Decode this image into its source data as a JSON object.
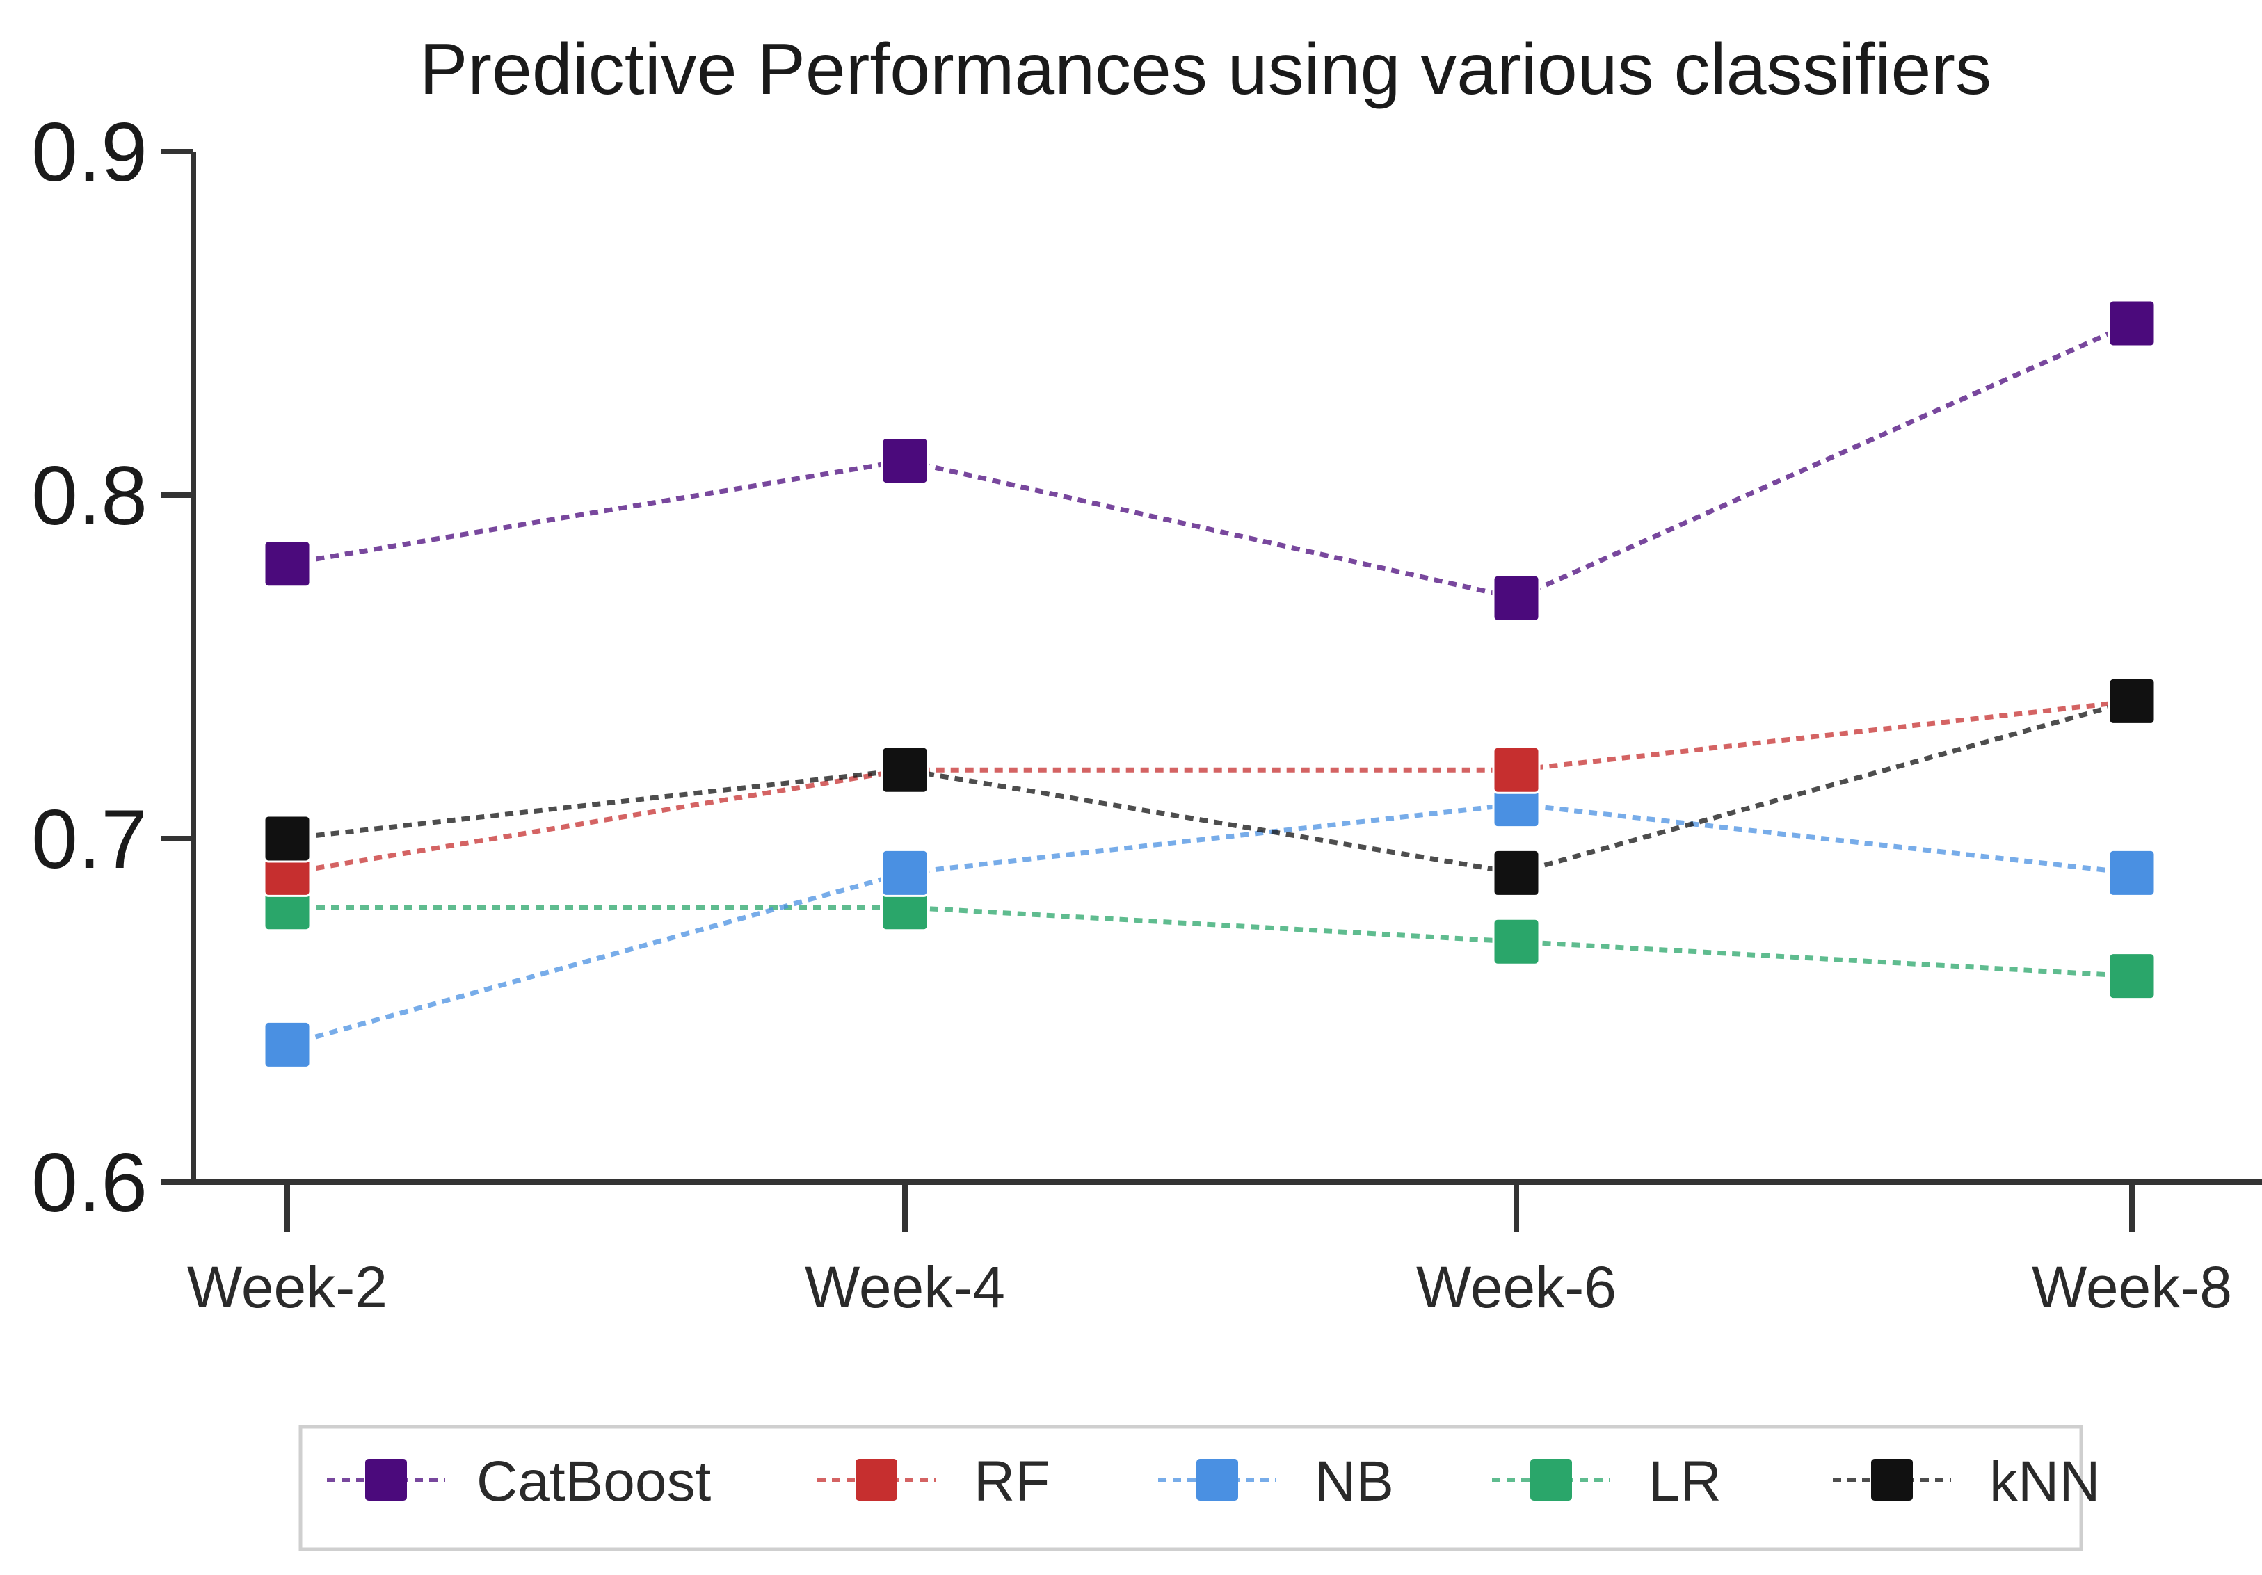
{
  "chart_data": {
    "type": "line",
    "title": "Predictive Performances using various classifiers",
    "xlabel": "",
    "ylabel": "",
    "categories": [
      "Week-2",
      "Week-4",
      "Week-6",
      "Week-8"
    ],
    "ylim": [
      0.6,
      0.9
    ],
    "yticks": [
      0.6,
      0.7,
      0.8,
      0.9
    ],
    "ytick_labels": [
      "0.6",
      "0.7",
      "0.8",
      "0.9"
    ],
    "grid": false,
    "legend_position": "bottom",
    "line_style": "dashed",
    "marker": "square",
    "series": [
      {
        "name": "CatBoost",
        "color": "#4b0a7c",
        "values": [
          0.78,
          0.81,
          0.77,
          0.85
        ]
      },
      {
        "name": "RF",
        "color": "#c62f2f",
        "values": [
          0.69,
          0.72,
          0.72,
          0.74
        ]
      },
      {
        "name": "NB",
        "color": "#4a90e2",
        "values": [
          0.64,
          0.69,
          0.71,
          0.69
        ]
      },
      {
        "name": "LR",
        "color": "#2aa66a",
        "values": [
          0.68,
          0.68,
          0.67,
          0.66
        ]
      },
      {
        "name": "kNN",
        "color": "#111111",
        "values": [
          0.7,
          0.72,
          0.69,
          0.74
        ]
      }
    ]
  }
}
